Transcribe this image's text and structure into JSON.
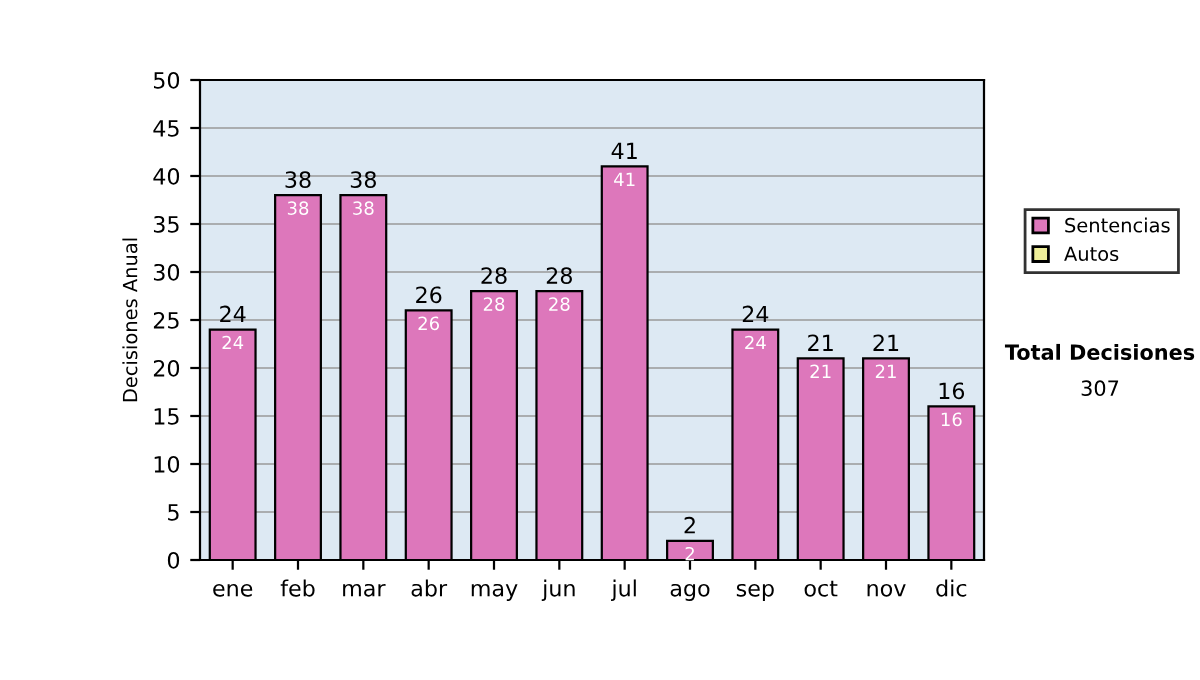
{
  "chart_data": {
    "type": "bar",
    "ylabel": "Decisiones Anual",
    "categories": [
      "ene",
      "feb",
      "mar",
      "abr",
      "may",
      "jun",
      "jul",
      "ago",
      "sep",
      "oct",
      "nov",
      "dic"
    ],
    "series": [
      {
        "name": "Sentencias",
        "color": "#dd77bb",
        "values": [
          24,
          38,
          38,
          26,
          28,
          28,
          41,
          2,
          24,
          21,
          21,
          16
        ]
      },
      {
        "name": "Autos",
        "color": "#eeee99",
        "values": [
          null,
          null,
          null,
          null,
          null,
          null,
          null,
          null,
          null,
          null,
          null,
          null
        ]
      }
    ],
    "stacked": true,
    "data_labels": true,
    "totals": [
      "24",
      "38",
      "38",
      "26",
      "28",
      "28",
      "41",
      "2",
      "24",
      "21",
      "21",
      "16"
    ],
    "ylim": [
      0,
      50
    ],
    "yticks": [
      0,
      5,
      10,
      15,
      20,
      25,
      30,
      35,
      40,
      45,
      50
    ],
    "grid": "y",
    "legend": "right",
    "annotations": [
      "Total Decisiones",
      "307"
    ]
  }
}
